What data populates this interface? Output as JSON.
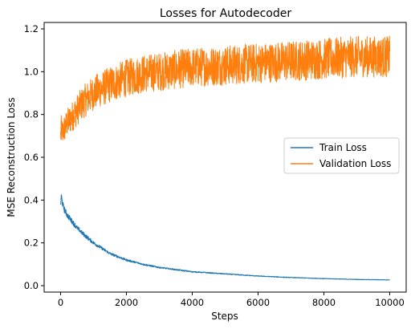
{
  "chart_data": {
    "type": "line",
    "title": "Losses for Autodecoder",
    "xlabel": "Steps",
    "ylabel": "MSE Reconstruction Loss",
    "xlim": [
      -500,
      10500
    ],
    "ylim": [
      -0.03,
      1.23
    ],
    "xticks": [
      0,
      2000,
      4000,
      6000,
      8000,
      10000
    ],
    "xtick_labels": [
      "0",
      "2000",
      "4000",
      "6000",
      "8000",
      "10000"
    ],
    "yticks": [
      0.0,
      0.2,
      0.4,
      0.6,
      0.8,
      1.0,
      1.2
    ],
    "ytick_labels": [
      "0.0",
      "0.2",
      "0.4",
      "0.6",
      "0.8",
      "1.0",
      "1.2"
    ],
    "grid": false,
    "legend_position": "center-right",
    "series": [
      {
        "name": "Train Loss",
        "color": "#1f77b4",
        "noise": 0.045,
        "x": [
          0,
          25,
          50,
          100,
          200,
          300,
          400,
          500,
          700,
          1000,
          1500,
          2000,
          2500,
          3000,
          3500,
          4000,
          5000,
          6000,
          7000,
          8000,
          9000,
          10000
        ],
        "y": [
          0.38,
          0.42,
          0.39,
          0.36,
          0.33,
          0.31,
          0.29,
          0.27,
          0.24,
          0.2,
          0.15,
          0.12,
          0.1,
          0.085,
          0.075,
          0.065,
          0.055,
          0.045,
          0.038,
          0.033,
          0.029,
          0.027
        ]
      },
      {
        "name": "Validation Loss",
        "color": "#ff7f0e",
        "noise": 0.09,
        "x": [
          0,
          25,
          50,
          100,
          200,
          300,
          500,
          700,
          1000,
          1500,
          2000,
          2500,
          3000,
          3500,
          4000,
          5000,
          6000,
          7000,
          8000,
          9000,
          10000
        ],
        "y": [
          0.7,
          0.74,
          0.71,
          0.73,
          0.76,
          0.78,
          0.82,
          0.86,
          0.9,
          0.94,
          0.97,
          0.99,
          1.0,
          1.01,
          1.02,
          1.03,
          1.04,
          1.05,
          1.06,
          1.07,
          1.07
        ]
      }
    ]
  }
}
